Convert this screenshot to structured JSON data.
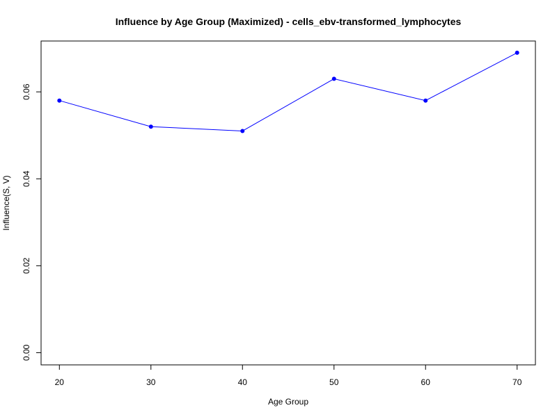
{
  "chart_data": {
    "type": "line",
    "title": "Influence by Age Group (Maximized) - cells_ebv-transformed_lymphocytes",
    "xlabel": "Age Group",
    "ylabel": "Influence(S, V)",
    "x": [
      20,
      30,
      40,
      50,
      60,
      70
    ],
    "series": [
      {
        "values": [
          0.058,
          0.052,
          0.051,
          0.063,
          0.058,
          0.069
        ],
        "color": "#0000ff",
        "marker": "filled-circle"
      }
    ],
    "xticks": [
      20,
      30,
      40,
      50,
      60,
      70
    ],
    "xtick_labels": [
      "20",
      "30",
      "40",
      "50",
      "60",
      "70"
    ],
    "yticks": [
      0.0,
      0.02,
      0.04,
      0.06
    ],
    "ytick_labels": [
      "0.00",
      "0.02",
      "0.04",
      "0.06"
    ],
    "xlim": [
      18,
      72
    ],
    "ylim": [
      -0.0028,
      0.0717
    ],
    "grid": false,
    "legend": "none"
  }
}
